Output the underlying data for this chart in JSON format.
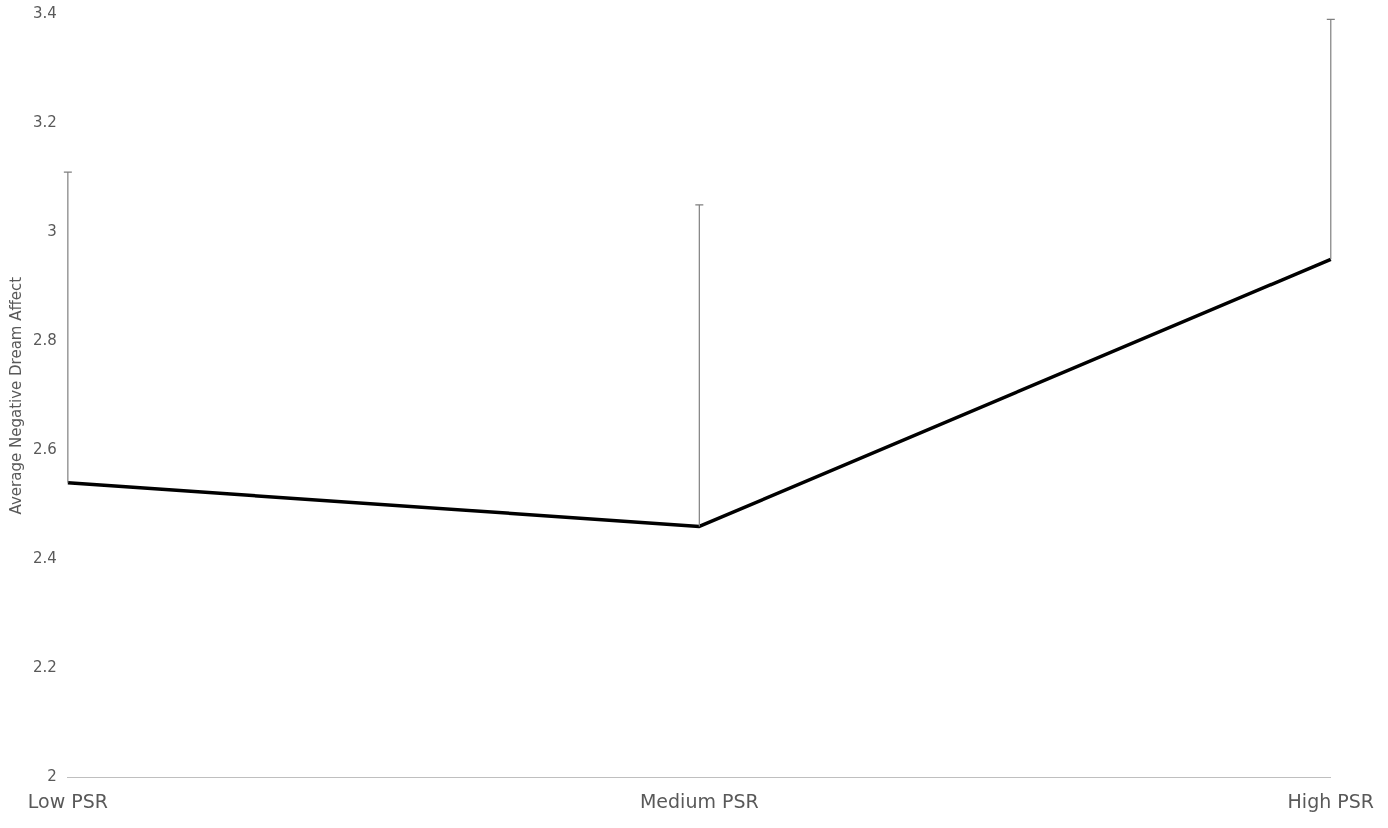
{
  "chart_data": {
    "type": "line",
    "ylabel": "Average Negative Dream Affect",
    "categories": [
      "Low PSR",
      "Medium PSR",
      "High PSR"
    ],
    "series": [
      {
        "color": "#000000",
        "values": [
          2.54,
          2.46,
          2.95
        ],
        "errors": [
          [
            2.54,
            3.11
          ],
          [
            2.46,
            3.05
          ],
          [
            2.95,
            3.39
          ]
        ]
      }
    ],
    "ylim": [
      2,
      3.4
    ],
    "yticks": [
      2,
      2.2,
      2.4,
      2.6,
      2.8,
      3,
      3.2,
      3.4
    ],
    "grid": false,
    "legend": false,
    "marker": "none",
    "line_style": "solid"
  }
}
